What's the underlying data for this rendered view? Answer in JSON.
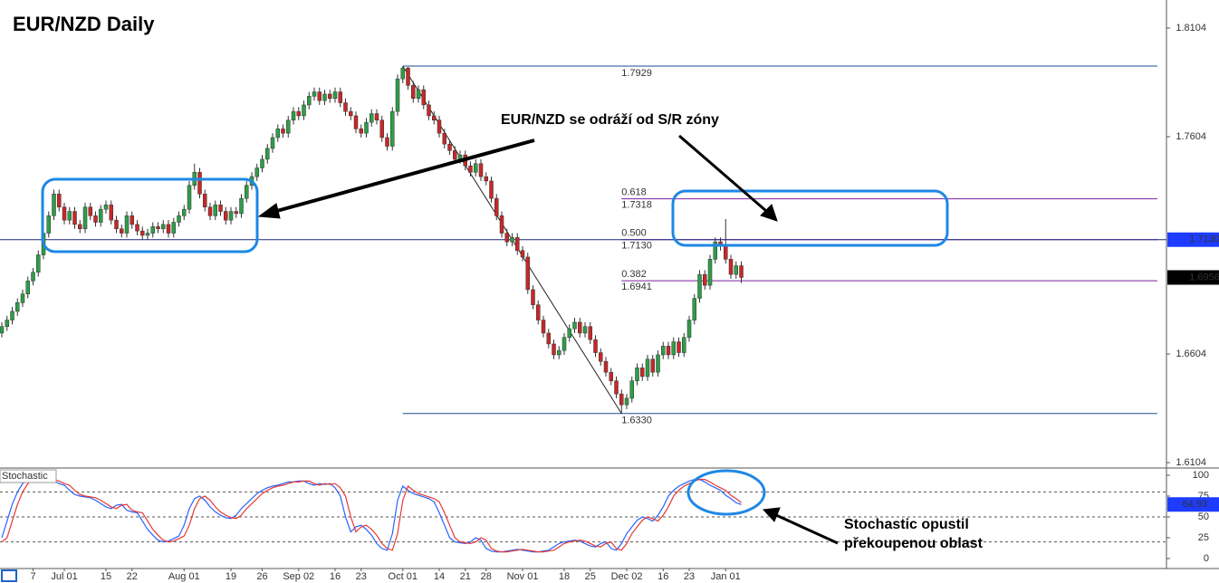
{
  "chart_data": {
    "type": "candlestick",
    "title": "EUR/NZD Daily",
    "xlim": [
      -0.35,
      223.65
    ],
    "xticks": [
      {
        "value": 6,
        "label": "7"
      },
      {
        "value": 12,
        "label": "Jul 01"
      },
      {
        "value": 20,
        "label": "15"
      },
      {
        "value": 25,
        "label": "22"
      },
      {
        "value": 35,
        "label": "Aug 01"
      },
      {
        "value": 44,
        "label": "19"
      },
      {
        "value": 50,
        "label": "26"
      },
      {
        "value": 57,
        "label": "Sep 02"
      },
      {
        "value": 64,
        "label": "16"
      },
      {
        "value": 69,
        "label": "23"
      },
      {
        "value": 77,
        "label": "Oct 01"
      },
      {
        "value": 84,
        "label": "14"
      },
      {
        "value": 89,
        "label": "21"
      },
      {
        "value": 93,
        "label": "28"
      },
      {
        "value": 100,
        "label": "Nov 01"
      },
      {
        "value": 108,
        "label": "18"
      },
      {
        "value": 113,
        "label": "25"
      },
      {
        "value": 120,
        "label": "Dec 02"
      },
      {
        "value": 127,
        "label": "16"
      },
      {
        "value": 132,
        "label": "23"
      },
      {
        "value": 139,
        "label": "Jan 01"
      }
    ],
    "ylim": [
      1.6079,
      1.8233
    ],
    "yticks": [
      1.8104,
      1.7604,
      1.6604,
      1.6104
    ],
    "up_color": "#2e9d48",
    "down_color": "#c62828",
    "open": [
      1.67,
      1.673,
      1.676,
      1.68,
      1.684,
      1.688,
      1.694,
      1.698,
      1.706,
      1.716,
      1.724,
      1.734,
      1.728,
      1.722,
      1.726,
      1.72,
      1.718,
      1.728,
      1.724,
      1.721,
      1.727,
      1.729,
      1.722,
      1.718,
      1.716,
      1.724,
      1.72,
      1.717,
      1.715,
      1.716,
      1.719,
      1.718,
      1.72,
      1.716,
      1.721,
      1.724,
      1.727,
      1.738,
      1.744,
      1.734,
      1.728,
      1.724,
      1.729,
      1.726,
      1.722,
      1.726,
      1.725,
      1.732,
      1.738,
      1.742,
      1.746,
      1.75,
      1.755,
      1.76,
      1.764,
      1.762,
      1.768,
      1.772,
      1.77,
      1.775,
      1.779,
      1.781,
      1.777,
      1.78,
      1.778,
      1.781,
      1.776,
      1.772,
      1.77,
      1.764,
      1.762,
      1.767,
      1.771,
      1.768,
      1.76,
      1.756,
      1.772,
      1.787,
      1.792,
      1.784,
      1.778,
      1.782,
      1.775,
      1.77,
      1.768,
      1.762,
      1.757,
      1.754,
      1.75,
      1.752,
      1.747,
      1.744,
      1.748,
      1.742,
      1.74,
      1.732,
      1.724,
      1.716,
      1.712,
      1.714,
      1.708,
      1.705,
      1.69,
      1.683,
      1.676,
      1.67,
      1.665,
      1.66,
      1.662,
      1.668,
      1.672,
      1.675,
      1.67,
      1.673,
      1.667,
      1.661,
      1.657,
      1.652,
      1.648,
      1.642,
      1.637,
      1.64,
      1.648,
      1.654,
      1.65,
      1.658,
      1.652,
      1.66,
      1.664,
      1.66,
      1.666,
      1.661,
      1.668,
      1.676,
      1.686,
      1.697,
      1.692,
      1.704,
      1.712,
      1.71,
      1.704,
      1.697,
      1.701
    ],
    "high": [
      1.675,
      1.678,
      1.682,
      1.686,
      1.69,
      1.696,
      1.7,
      1.708,
      1.718,
      1.726,
      1.736,
      1.736,
      1.73,
      1.728,
      1.728,
      1.722,
      1.73,
      1.73,
      1.726,
      1.729,
      1.731,
      1.731,
      1.724,
      1.72,
      1.726,
      1.726,
      1.722,
      1.719,
      1.718,
      1.721,
      1.721,
      1.722,
      1.722,
      1.723,
      1.726,
      1.729,
      1.74,
      1.748,
      1.746,
      1.736,
      1.73,
      1.731,
      1.731,
      1.728,
      1.728,
      1.728,
      1.734,
      1.74,
      1.744,
      1.748,
      1.752,
      1.757,
      1.762,
      1.766,
      1.766,
      1.77,
      1.774,
      1.774,
      1.777,
      1.781,
      1.783,
      1.783,
      1.782,
      1.782,
      1.783,
      1.783,
      1.778,
      1.774,
      1.772,
      1.766,
      1.769,
      1.773,
      1.773,
      1.77,
      1.762,
      1.774,
      1.789,
      1.7929,
      1.7925,
      1.786,
      1.784,
      1.784,
      1.777,
      1.772,
      1.77,
      1.764,
      1.759,
      1.756,
      1.754,
      1.754,
      1.749,
      1.75,
      1.75,
      1.744,
      1.742,
      1.734,
      1.726,
      1.718,
      1.716,
      1.716,
      1.71,
      1.707,
      1.692,
      1.685,
      1.678,
      1.672,
      1.667,
      1.664,
      1.67,
      1.674,
      1.677,
      1.677,
      1.675,
      1.675,
      1.669,
      1.663,
      1.659,
      1.654,
      1.65,
      1.644,
      1.642,
      1.65,
      1.656,
      1.656,
      1.66,
      1.66,
      1.662,
      1.666,
      1.666,
      1.668,
      1.668,
      1.67,
      1.678,
      1.688,
      1.699,
      1.699,
      1.706,
      1.714,
      1.714,
      1.7225,
      1.706,
      1.703,
      1.703
    ],
    "low": [
      1.668,
      1.671,
      1.674,
      1.678,
      1.682,
      1.686,
      1.692,
      1.696,
      1.704,
      1.714,
      1.722,
      1.726,
      1.72,
      1.72,
      1.718,
      1.716,
      1.716,
      1.722,
      1.719,
      1.719,
      1.725,
      1.72,
      1.716,
      1.714,
      1.714,
      1.718,
      1.715,
      1.713,
      1.713,
      1.714,
      1.716,
      1.716,
      1.714,
      1.714,
      1.719,
      1.722,
      1.725,
      1.736,
      1.732,
      1.726,
      1.722,
      1.722,
      1.724,
      1.72,
      1.72,
      1.723,
      1.723,
      1.73,
      1.736,
      1.74,
      1.744,
      1.748,
      1.753,
      1.758,
      1.76,
      1.76,
      1.766,
      1.768,
      1.768,
      1.773,
      1.777,
      1.775,
      1.775,
      1.776,
      1.776,
      1.774,
      1.77,
      1.768,
      1.762,
      1.76,
      1.76,
      1.765,
      1.766,
      1.758,
      1.754,
      1.754,
      1.77,
      1.785,
      1.782,
      1.776,
      1.776,
      1.773,
      1.768,
      1.766,
      1.76,
      1.755,
      1.752,
      1.748,
      1.748,
      1.745,
      1.742,
      1.742,
      1.74,
      1.738,
      1.73,
      1.722,
      1.714,
      1.71,
      1.71,
      1.706,
      1.703,
      1.688,
      1.681,
      1.674,
      1.668,
      1.663,
      1.658,
      1.658,
      1.66,
      1.666,
      1.67,
      1.668,
      1.668,
      1.665,
      1.659,
      1.655,
      1.65,
      1.646,
      1.64,
      1.633,
      1.635,
      1.638,
      1.646,
      1.648,
      1.648,
      1.65,
      1.65,
      1.658,
      1.658,
      1.658,
      1.659,
      1.659,
      1.666,
      1.674,
      1.684,
      1.69,
      1.69,
      1.702,
      1.708,
      1.702,
      1.695,
      1.695,
      1.693
    ],
    "close": [
      1.673,
      1.676,
      1.68,
      1.684,
      1.688,
      1.694,
      1.698,
      1.706,
      1.716,
      1.724,
      1.734,
      1.728,
      1.722,
      1.726,
      1.72,
      1.718,
      1.728,
      1.724,
      1.721,
      1.727,
      1.729,
      1.722,
      1.718,
      1.716,
      1.724,
      1.72,
      1.717,
      1.715,
      1.716,
      1.719,
      1.718,
      1.72,
      1.716,
      1.721,
      1.724,
      1.727,
      1.738,
      1.744,
      1.734,
      1.728,
      1.724,
      1.729,
      1.726,
      1.722,
      1.726,
      1.725,
      1.732,
      1.738,
      1.742,
      1.746,
      1.75,
      1.755,
      1.76,
      1.764,
      1.762,
      1.768,
      1.772,
      1.77,
      1.775,
      1.779,
      1.781,
      1.777,
      1.78,
      1.778,
      1.781,
      1.776,
      1.772,
      1.77,
      1.764,
      1.762,
      1.767,
      1.771,
      1.768,
      1.76,
      1.756,
      1.772,
      1.787,
      1.792,
      1.784,
      1.778,
      1.782,
      1.775,
      1.77,
      1.768,
      1.762,
      1.757,
      1.754,
      1.75,
      1.752,
      1.747,
      1.744,
      1.748,
      1.742,
      1.74,
      1.732,
      1.724,
      1.716,
      1.712,
      1.714,
      1.708,
      1.705,
      1.69,
      1.683,
      1.676,
      1.67,
      1.665,
      1.66,
      1.662,
      1.668,
      1.672,
      1.675,
      1.67,
      1.673,
      1.667,
      1.661,
      1.657,
      1.652,
      1.648,
      1.642,
      1.637,
      1.64,
      1.648,
      1.654,
      1.65,
      1.658,
      1.652,
      1.66,
      1.664,
      1.66,
      1.666,
      1.661,
      1.668,
      1.676,
      1.686,
      1.697,
      1.692,
      1.704,
      1.712,
      1.71,
      1.704,
      1.697,
      1.701,
      1.6956
    ],
    "fibonacci": {
      "x": [
        77,
        119
      ],
      "levels": [
        {
          "price": 1.7929,
          "color": "#1f4e8c"
        },
        {
          "ratio": 0.618,
          "price": 1.7318,
          "color": "#7b1fa2"
        },
        {
          "ratio": {
            "value": 0.5,
            "label": "0.500"
          },
          "price": {
            "value": 1.713,
            "label": "1.7130"
          },
          "color": "#7b1fa2"
        },
        {
          "ratio": 0.382,
          "price": 1.6941,
          "color": "#7b1fa2"
        },
        {
          "price": {
            "value": 1.633,
            "label": "1.6330"
          },
          "color": "#1f4e8c"
        }
      ]
    },
    "annotations": [
      "EUR/NZD se odráží od S/R zóny",
      "Stochastic opustil",
      "překoupenou oblast"
    ],
    "stochastic": {
      "title": "Stochastic",
      "ylim": [
        -12,
        108.7
      ],
      "yticks": [
        100,
        75,
        50,
        25,
        0
      ],
      "levels": [
        80,
        50,
        20
      ],
      "series": [
        {
          "color": "#2962ff",
          "values": [
            25,
            45,
            65,
            80,
            90,
            95,
            96,
            95,
            94,
            95,
            93,
            90,
            88,
            82,
            77,
            75,
            74,
            73,
            70,
            66,
            62,
            60,
            64,
            65,
            58,
            56,
            55,
            45,
            35,
            28,
            22,
            20,
            21,
            24,
            27,
            40,
            60,
            72,
            75,
            70,
            62,
            56,
            52,
            49,
            48,
            52,
            60,
            66,
            72,
            78,
            82,
            85,
            87,
            88,
            90,
            92,
            92,
            93,
            93,
            90,
            88,
            90,
            89,
            90,
            85,
            75,
            50,
            32,
            38,
            40,
            35,
            28,
            18,
            12,
            10,
            30,
            70,
            87,
            82,
            78,
            76,
            74,
            72,
            68,
            55,
            40,
            25,
            20,
            19,
            18,
            20,
            25,
            22,
            12,
            9,
            8,
            8,
            9,
            10,
            11,
            10,
            9,
            8,
            8,
            9,
            10,
            14,
            18,
            20,
            21,
            22,
            21,
            18,
            15,
            14,
            18,
            20,
            12,
            10,
            18,
            30,
            38,
            46,
            50,
            48,
            45,
            52,
            62,
            75,
            82,
            87,
            90,
            93,
            95,
            95,
            92,
            88,
            85,
            82,
            76,
            72,
            67,
            64.93
          ]
        },
        {
          "color": "#e53935",
          "values": [
            20,
            25,
            45,
            65,
            80,
            90,
            95,
            96,
            95,
            94,
            95,
            93,
            90,
            88,
            82,
            77,
            75,
            74,
            73,
            70,
            66,
            62,
            60,
            64,
            65,
            58,
            56,
            55,
            45,
            35,
            28,
            22,
            20,
            21,
            24,
            27,
            40,
            60,
            72,
            75,
            70,
            62,
            56,
            52,
            49,
            48,
            52,
            60,
            66,
            72,
            78,
            82,
            85,
            87,
            88,
            90,
            92,
            92,
            93,
            93,
            90,
            88,
            90,
            89,
            90,
            85,
            75,
            50,
            32,
            38,
            40,
            35,
            28,
            18,
            12,
            10,
            30,
            70,
            87,
            82,
            78,
            76,
            74,
            72,
            68,
            55,
            40,
            25,
            20,
            19,
            18,
            20,
            25,
            22,
            12,
            9,
            8,
            8,
            9,
            10,
            11,
            10,
            9,
            8,
            8,
            9,
            10,
            14,
            18,
            20,
            21,
            22,
            21,
            18,
            15,
            14,
            18,
            20,
            12,
            10,
            18,
            30,
            38,
            46,
            50,
            48,
            45,
            52,
            62,
            75,
            82,
            87,
            90,
            93,
            95,
            95,
            92,
            88,
            85,
            82,
            76,
            72,
            67
          ]
        }
      ]
    }
  }
}
